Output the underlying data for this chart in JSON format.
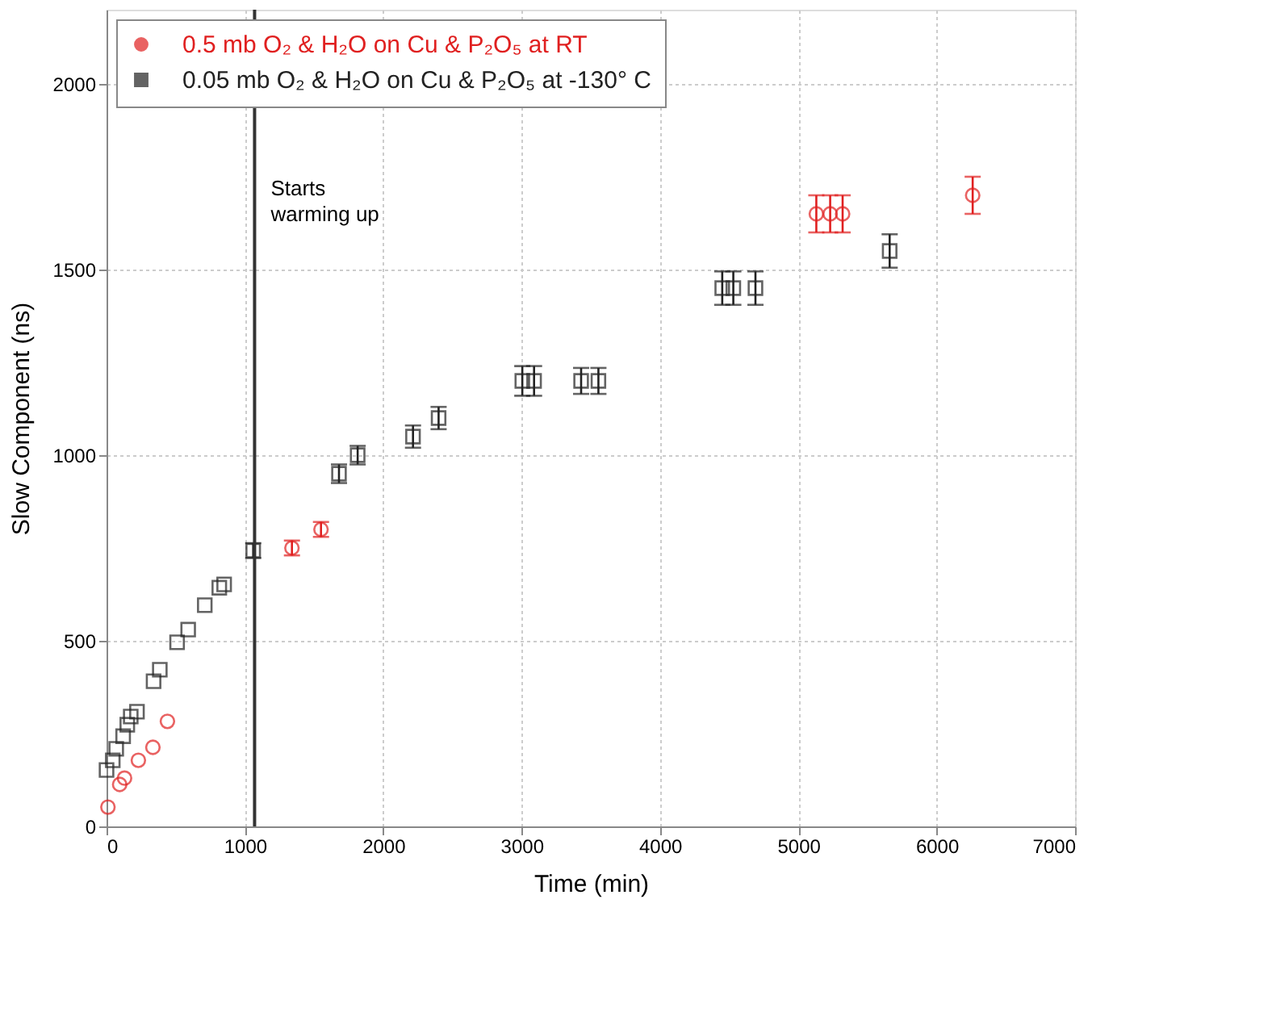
{
  "chart_data": {
    "type": "scatter",
    "xlabel": "Time (min)",
    "ylabel": "Slow Component (ns)",
    "xlim": [
      0,
      7000
    ],
    "xticks": [
      0,
      1000,
      2000,
      3000,
      4000,
      5000,
      6000,
      7000
    ],
    "ylim": [
      0,
      2200
    ],
    "yticks": [
      0,
      500,
      1000,
      1500,
      2000
    ],
    "grid": true,
    "legend": "top left",
    "series": [
      {
        "name": "0.5 mb O₂ & H₂O on Cu & P₂O₅ at RT",
        "color": "#e02020",
        "marker": "circle",
        "x": [
          10,
          95,
          130,
          230,
          335,
          440,
          1340,
          1550,
          5130,
          5230,
          5320,
          6260
        ],
        "values": [
          52,
          113,
          130,
          178,
          213,
          283,
          750,
          800,
          1650,
          1650,
          1650,
          1700
        ],
        "errors": [
          null,
          null,
          null,
          null,
          null,
          null,
          20,
          20,
          50,
          50,
          50,
          50
        ]
      },
      {
        "name": "0.05 mb O₂ & H₂O on Cu & P₂O₅ at -130° C",
        "color": "#222222",
        "marker": "square",
        "x": [
          0,
          45,
          70,
          120,
          150,
          175,
          220,
          340,
          385,
          510,
          590,
          710,
          815,
          850,
          1060,
          1680,
          1815,
          2215,
          2400,
          3005,
          3090,
          3430,
          3555,
          4450,
          4530,
          4690,
          5660
        ],
        "values": [
          152,
          178,
          209,
          243,
          274,
          296,
          309,
          391,
          422,
          496,
          530,
          596,
          643,
          652,
          743,
          950,
          1000,
          1050,
          1100,
          1200,
          1200,
          1200,
          1200,
          1450,
          1450,
          1450,
          1550
        ],
        "errors": [
          null,
          null,
          null,
          null,
          null,
          null,
          null,
          null,
          null,
          null,
          null,
          null,
          null,
          null,
          20,
          25,
          25,
          30,
          30,
          40,
          40,
          35,
          35,
          45,
          45,
          45,
          45
        ]
      }
    ],
    "ref_lines": [
      {
        "axis": "x",
        "value": 1070,
        "label": "Starts warming up",
        "color": "#333333",
        "line_style": "solid"
      }
    ]
  }
}
